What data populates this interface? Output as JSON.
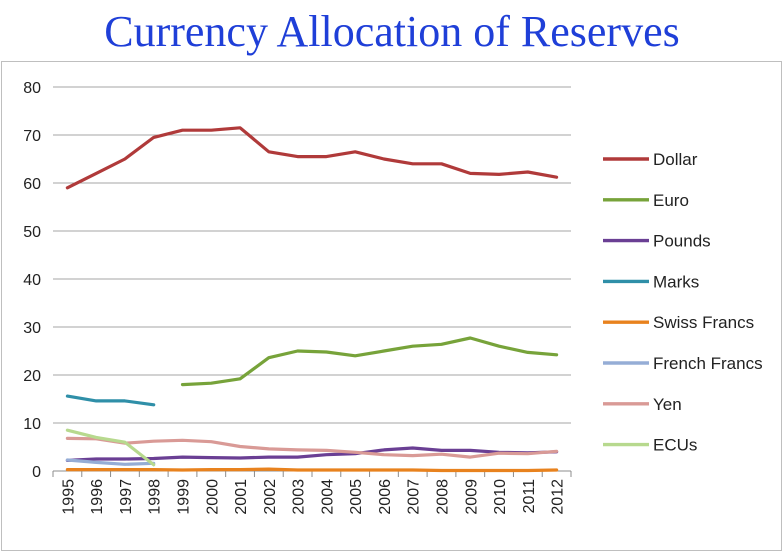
{
  "title": "Currency Allocation of Reserves",
  "chart_data": {
    "type": "line",
    "title": "Currency Allocation of Reserves",
    "xlabel": "",
    "ylabel": "",
    "ylim": [
      0,
      80
    ],
    "yticks": [
      0,
      10,
      20,
      30,
      40,
      50,
      60,
      70,
      80
    ],
    "grid": true,
    "legend_position": "right",
    "x": [
      "1995",
      "1996",
      "1997",
      "1998",
      "1999",
      "2000",
      "2001",
      "2002",
      "2003",
      "2004",
      "2005",
      "2006",
      "2007",
      "2008",
      "2009",
      "2010",
      "2011",
      "2012"
    ],
    "series": [
      {
        "name": "Dollar",
        "color": "#b03a3a",
        "values": [
          59,
          62,
          65,
          69.5,
          71,
          71,
          71.5,
          66.5,
          65.5,
          65.5,
          66.5,
          65,
          64,
          64,
          62,
          61.8,
          62.3,
          61.2
        ]
      },
      {
        "name": "Euro",
        "color": "#77a33a",
        "values": [
          null,
          null,
          null,
          null,
          18,
          18.3,
          19.2,
          23.6,
          25,
          24.8,
          24,
          25,
          26,
          26.4,
          27.7,
          26,
          24.7,
          24.2
        ]
      },
      {
        "name": "Pounds",
        "color": "#6a3f94",
        "values": [
          2.2,
          2.5,
          2.5,
          2.6,
          2.9,
          2.8,
          2.7,
          2.9,
          2.9,
          3.4,
          3.6,
          4.4,
          4.8,
          4.3,
          4.3,
          3.9,
          3.8,
          4.0
        ]
      },
      {
        "name": "Marks",
        "color": "#2f8fa8",
        "values": [
          15.6,
          14.6,
          14.6,
          13.8,
          null,
          null,
          null,
          null,
          null,
          null,
          null,
          null,
          null,
          null,
          null,
          null,
          null,
          null
        ]
      },
      {
        "name": "Swiss Francs",
        "color": "#e8821e",
        "values": [
          0.3,
          0.3,
          0.3,
          0.3,
          0.2,
          0.3,
          0.3,
          0.4,
          0.2,
          0.2,
          0.2,
          0.2,
          0.2,
          0.1,
          0.1,
          0.1,
          0.1,
          0.2
        ]
      },
      {
        "name": "French Francs",
        "color": "#95add6",
        "values": [
          2.3,
          1.8,
          1.4,
          1.6,
          null,
          null,
          null,
          null,
          null,
          null,
          null,
          null,
          null,
          null,
          null,
          null,
          null,
          null
        ]
      },
      {
        "name": "Yen",
        "color": "#d99a96",
        "values": [
          6.8,
          6.7,
          5.8,
          6.2,
          6.4,
          6.1,
          5.1,
          4.6,
          4.4,
          4.3,
          3.9,
          3.4,
          3.2,
          3.5,
          2.9,
          3.7,
          3.6,
          4.1
        ]
      },
      {
        "name": "ECUs",
        "color": "#b7d98e",
        "values": [
          8.5,
          7.0,
          6.0,
          1.3,
          null,
          null,
          null,
          null,
          null,
          null,
          null,
          null,
          null,
          null,
          null,
          null,
          null,
          null
        ]
      }
    ]
  }
}
